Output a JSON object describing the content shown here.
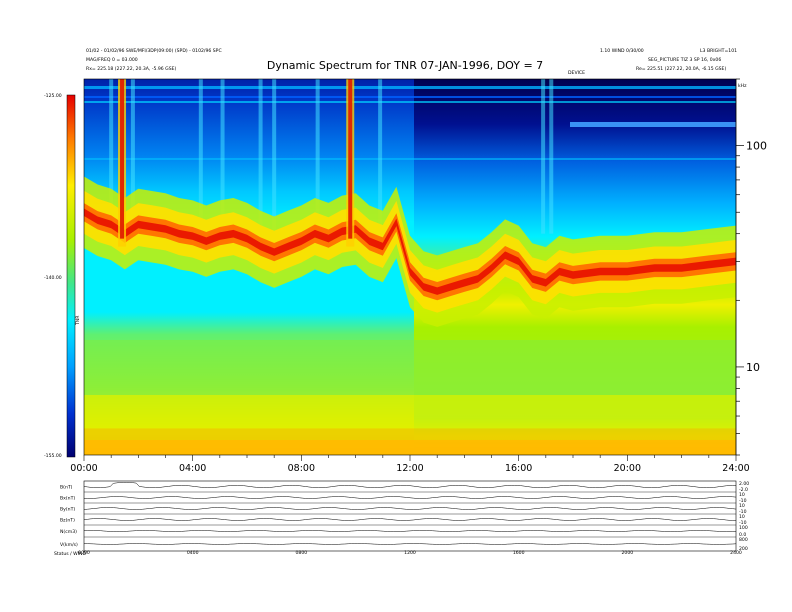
{
  "chart_data": {
    "type": "heatmap",
    "title": "Dynamic Spectrum for TNR 07-JAN-1996, DOY = 7",
    "header_left": {
      "line1": "01/02 - 01/02/96 SWE/MFI/3DP(09:00) (SPD) - 0102/96 SPC",
      "line2": "MAG/FREQ 0 = 03.000",
      "line3": "Rx=   225.18 (227.22, 20.3A, -5.96 GSE)"
    },
    "header_right": {
      "col1a": "1.10 WIND 0/30/00",
      "col2a": "L3 BRIGHT=101",
      "line2": "SEG_PICTURE   TIZ 3 SP 16, 0x06",
      "line3": "Re=   225.51 (227.22, 20.0A, -6.15 GSE)",
      "tag": "DEVICE"
    },
    "colorbar": {
      "tick_labels": [
        "-125.00",
        "-140.00",
        "-155.00"
      ],
      "label": "TNR"
    },
    "x": {
      "tick_labels": [
        "00:00",
        "04:00",
        "08:00",
        "12:00",
        "16:00",
        "20:00",
        "24:00"
      ],
      "range_hours": [
        0,
        24
      ]
    },
    "y": {
      "unit": "kHz",
      "tick_labels": [
        "100",
        "10"
      ],
      "scale": "log",
      "range_khz": [
        4,
        200
      ]
    },
    "spectrum": {
      "band_center_khz": [
        [
          0.0,
          50
        ],
        [
          0.5,
          46
        ],
        [
          1.0,
          44
        ],
        [
          1.5,
          40
        ],
        [
          2.0,
          44
        ],
        [
          2.5,
          43
        ],
        [
          3.0,
          42
        ],
        [
          3.5,
          40
        ],
        [
          4.0,
          39
        ],
        [
          4.5,
          37
        ],
        [
          5.0,
          39
        ],
        [
          5.5,
          40
        ],
        [
          6.0,
          38
        ],
        [
          6.5,
          35
        ],
        [
          7.0,
          33
        ],
        [
          7.5,
          35
        ],
        [
          8.0,
          37
        ],
        [
          8.5,
          40
        ],
        [
          9.0,
          38
        ],
        [
          9.5,
          41
        ],
        [
          10.0,
          42
        ],
        [
          10.5,
          37
        ],
        [
          11.0,
          35
        ],
        [
          11.5,
          45
        ],
        [
          12.0,
          27
        ],
        [
          12.5,
          23
        ],
        [
          13.0,
          22
        ],
        [
          13.5,
          23
        ],
        [
          14.0,
          24
        ],
        [
          14.5,
          25
        ],
        [
          15.0,
          28
        ],
        [
          15.5,
          32
        ],
        [
          16.0,
          30
        ],
        [
          16.5,
          25
        ],
        [
          17.0,
          24
        ],
        [
          17.5,
          27
        ],
        [
          18.0,
          26
        ],
        [
          19.0,
          27
        ],
        [
          20.0,
          27
        ],
        [
          21.0,
          28
        ],
        [
          22.0,
          28
        ],
        [
          23.0,
          29
        ],
        [
          24.0,
          30
        ]
      ],
      "type_iii_bursts_hour": [
        1.4,
        9.8
      ],
      "weak_bursts_hour": [
        1.0,
        1.8,
        4.3,
        5.1,
        6.5,
        7.0,
        8.6,
        10.9,
        16.9,
        17.2
      ],
      "lowest_band_khz": 5.5
    },
    "panels": {
      "labels": [
        "B(nT)",
        "Bx(nT)",
        "By(nT)",
        "Bz(nT)",
        "N(cm3)",
        "V(km/s)"
      ],
      "right_labels": [
        [
          "2.00",
          "-2.0"
        ],
        [
          "10",
          "-10"
        ],
        [
          "10",
          "-10"
        ],
        [
          "10",
          "-10"
        ],
        [
          "100",
          "0.0"
        ],
        [
          "800",
          "200"
        ]
      ],
      "bottom_ticks": [
        "0000",
        "0400",
        "0800",
        "1200",
        "1600",
        "2000",
        "2400"
      ],
      "bottom_left": "Status / WIND"
    }
  }
}
